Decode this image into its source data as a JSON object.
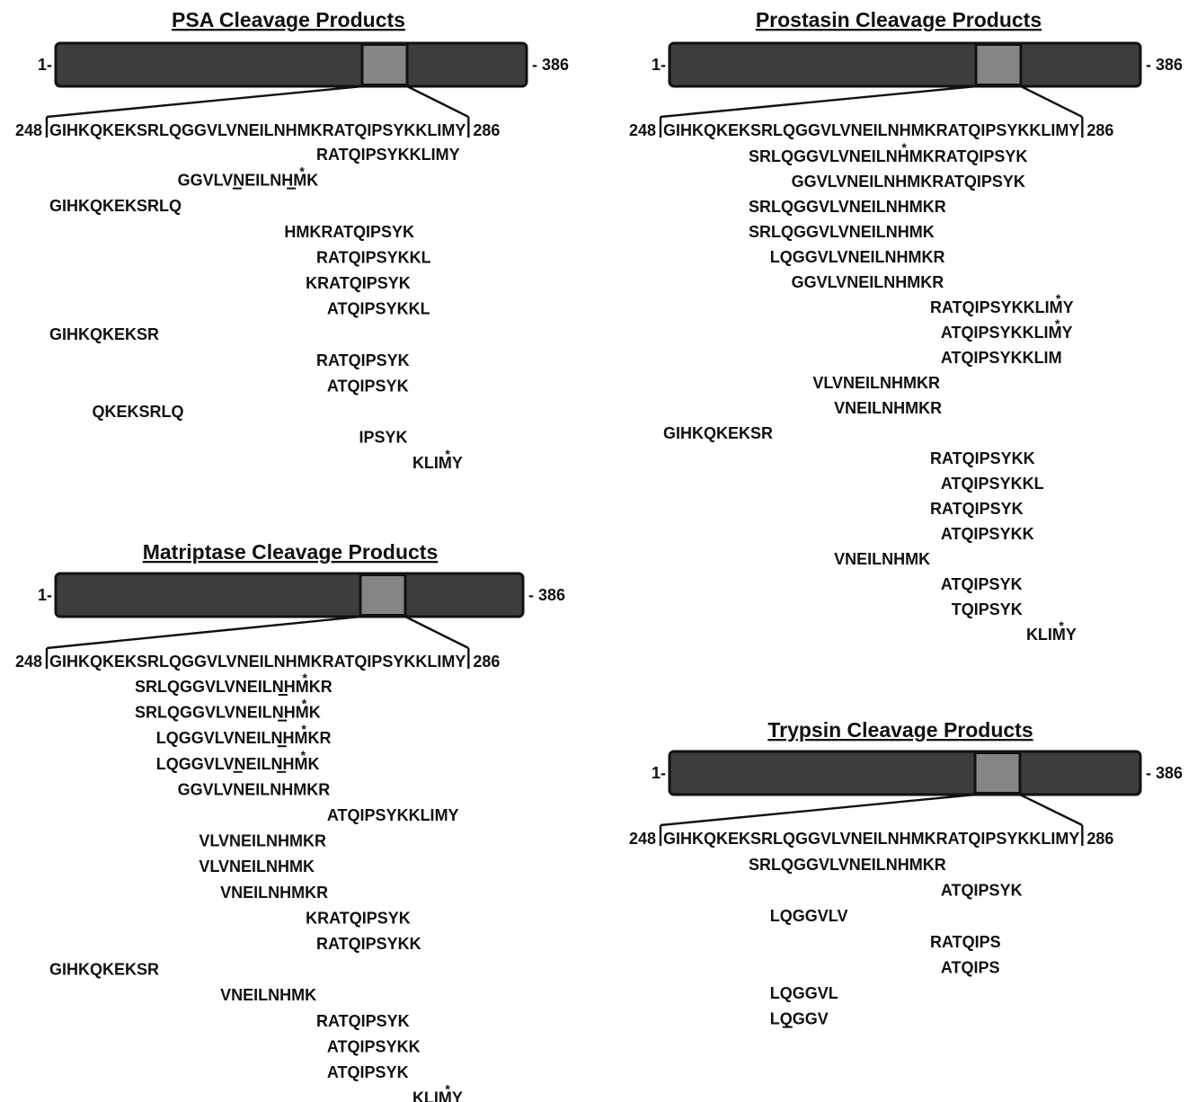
{
  "colors": {
    "protein_bar": "#3d3d3d",
    "highlight": "#858585",
    "outline": "#111111",
    "background": "#ffffff"
  },
  "panels": [
    {
      "title": "PSA Cleavage Products",
      "start_label": "1-",
      "end_label": "- 386",
      "seq_start_label": "248",
      "seq_end_label": "286",
      "sequence": "GIHKQKEKSRLQGGVLVNEILNHMKRATQIPSYKKLIMY",
      "peptides": [
        {
          "seq": "RATQIPSYKKLIMY"
        },
        {
          "seq": "GGVLVNEILNHMK",
          "underline": [
            5,
            10
          ],
          "asterisk": [
            11
          ]
        },
        {
          "seq": "GIHKQKEKSRLQ"
        },
        {
          "seq": "HMKRATQIPSYK"
        },
        {
          "seq": "RATQIPSYKKL"
        },
        {
          "seq": "KRATQIPSYK"
        },
        {
          "seq": "ATQIPSYKKL"
        },
        {
          "seq": "GIHKQKEKSR"
        },
        {
          "seq": "RATQIPSYK"
        },
        {
          "seq": "ATQIPSYK"
        },
        {
          "seq": "QKEKSRLQ"
        },
        {
          "seq": "IPSYK"
        },
        {
          "seq": "KLIMY",
          "asterisk": [
            3
          ]
        }
      ]
    },
    {
      "title": "Prostasin Cleavage Products",
      "start_label": "1-",
      "end_label": "- 386",
      "seq_start_label": "248",
      "seq_end_label": "286",
      "sequence": "GIHKQKEKSRLQGGVLVNEILNHMKRATQIPSYKKLIMY",
      "peptides": [
        {
          "seq": "SRLQGGVLVNEILNHMKRATQIPSYK",
          "asterisk": [
            14
          ]
        },
        {
          "seq": "GGVLVNEILNHMKRATQIPSYK"
        },
        {
          "seq": "SRLQGGVLVNEILNHMKR"
        },
        {
          "seq": "SRLQGGVLVNEILNHMK"
        },
        {
          "seq": "LQGGVLVNEILNHMKR"
        },
        {
          "seq": "GGVLVNEILNHMKR"
        },
        {
          "seq": "RATQIPSYKKLIMY",
          "asterisk": [
            12
          ]
        },
        {
          "seq": "ATQIPSYKKLIMY",
          "asterisk": [
            11
          ]
        },
        {
          "seq": "ATQIPSYKKLIM"
        },
        {
          "seq": "VLVNEILNHMKR"
        },
        {
          "seq": "VNEILNHMKR"
        },
        {
          "seq": "GIHKQKEKSR"
        },
        {
          "seq": "RATQIPSYKK"
        },
        {
          "seq": "ATQIPSYKKL"
        },
        {
          "seq": "RATQIPSYK"
        },
        {
          "seq": "ATQIPSYKK"
        },
        {
          "seq": "VNEILNHMK"
        },
        {
          "seq": "ATQIPSYK"
        },
        {
          "seq": "TQIPSYK"
        },
        {
          "seq": "KLIMY",
          "asterisk": [
            3
          ]
        }
      ]
    },
    {
      "title": "Matriptase Cleavage Products",
      "start_label": "1-",
      "end_label": "- 386",
      "seq_start_label": "248",
      "seq_end_label": "286",
      "sequence": "GIHKQKEKSRLQGGVLVNEILNHMKRATQIPSYKKLIMY",
      "peptides": [
        {
          "seq": "SRLQGGVLVNEILNHMKR",
          "underline": [
            13
          ],
          "asterisk": [
            15
          ]
        },
        {
          "seq": "SRLQGGVLVNEILNHMK",
          "underline": [
            13
          ],
          "asterisk": [
            15
          ]
        },
        {
          "seq": "LQGGVLVNEILNHMKR",
          "underline": [
            11
          ],
          "asterisk": [
            13
          ]
        },
        {
          "seq": "LQGGVLVNEILNHMK",
          "underline": [
            7,
            11
          ],
          "asterisk": [
            13
          ]
        },
        {
          "seq": "GGVLVNEILNHMKR"
        },
        {
          "seq": "ATQIPSYKKLIMY"
        },
        {
          "seq": "VLVNEILNHMKR"
        },
        {
          "seq": "VLVNEILNHMK"
        },
        {
          "seq": "VNEILNHMKR"
        },
        {
          "seq": "KRATQIPSYK"
        },
        {
          "seq": "RATQIPSYKK"
        },
        {
          "seq": "GIHKQKEKSR"
        },
        {
          "seq": "VNEILNHMK"
        },
        {
          "seq": "RATQIPSYK"
        },
        {
          "seq": "ATQIPSYKK"
        },
        {
          "seq": "ATQIPSYK"
        },
        {
          "seq": "KLIMY",
          "asterisk": [
            3
          ]
        }
      ]
    },
    {
      "title": "Trypsin Cleavage Products",
      "start_label": "1-",
      "end_label": "- 386",
      "seq_start_label": "248",
      "seq_end_label": "286",
      "sequence": "GIHKQKEKSRLQGGVLVNEILNHMKRATQIPSYKKLIMY",
      "peptides": [
        {
          "seq": "SRLQGGVLVNEILNHMKR"
        },
        {
          "seq": "ATQIPSYK"
        },
        {
          "seq": "LQGGVLV"
        },
        {
          "seq": "RATQIPS"
        },
        {
          "seq": "ATQIPS"
        },
        {
          "seq": "LQGGVL"
        },
        {
          "seq": "LQGGV",
          "underline": [
            1
          ]
        }
      ]
    }
  ]
}
